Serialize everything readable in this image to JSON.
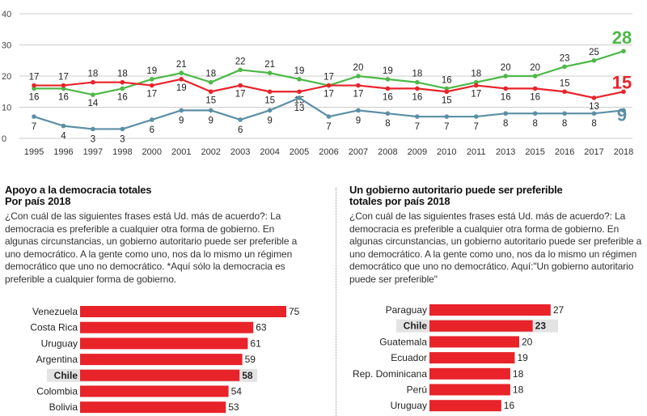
{
  "colors": {
    "green": "#4db848",
    "red": "#e8232a",
    "blue": "#5b8fa5",
    "bar": "#e8232a",
    "highlight": "#e3e3e3",
    "grid": "#cccccc"
  },
  "chart_data": [
    {
      "type": "line",
      "title": "",
      "x": [
        "1995",
        "1996",
        "1997",
        "1998",
        "2000",
        "2001",
        "2002",
        "2003",
        "2004",
        "2005",
        "2006",
        "2007",
        "2008",
        "2009",
        "2010",
        "2011",
        "2013",
        "2015",
        "2016",
        "2017",
        "2018"
      ],
      "yticks": [
        "0",
        "10",
        "20",
        "30",
        "40"
      ],
      "ylim": [
        0,
        40
      ],
      "grid": true,
      "series": [
        {
          "color": "#4db848",
          "values": [
            16,
            16,
            14,
            16,
            19,
            21,
            18,
            22,
            21,
            19,
            17,
            20,
            19,
            18,
            16,
            18,
            20,
            20,
            23,
            25,
            28
          ],
          "labels": [
            "16",
            "16",
            "14",
            "16",
            "19",
            "21",
            "18",
            "22",
            "21",
            "19",
            "17",
            "20",
            "19",
            "18",
            "16",
            "18",
            "20",
            "20",
            "23",
            "25",
            "28"
          ]
        },
        {
          "color": "#e8232a",
          "values": [
            17,
            17,
            18,
            18,
            17,
            19,
            15,
            17,
            15,
            15,
            17,
            17,
            16,
            16,
            15,
            17,
            16,
            16,
            15,
            13,
            15
          ],
          "labels": [
            "17",
            "17",
            "18",
            "18",
            "17",
            "19",
            "15",
            "17",
            "15",
            "15",
            "17",
            "17",
            "16",
            "16",
            "15",
            "17",
            "16",
            "16",
            "15",
            "13",
            "15"
          ]
        },
        {
          "color": "#5b8fa5",
          "values": [
            7,
            4,
            3,
            3,
            6,
            9,
            9,
            6,
            9,
            13,
            7,
            9,
            8,
            7,
            7,
            7,
            8,
            8,
            8,
            8,
            9
          ],
          "labels": [
            "7",
            "4",
            "3",
            "3",
            "6",
            "9",
            "9",
            "6",
            "9",
            "13",
            "7",
            "9",
            "8",
            "7",
            "7",
            "7",
            "8",
            "8",
            "8",
            "8",
            "9"
          ]
        }
      ]
    },
    {
      "type": "bar",
      "title": "Apoyo a la democracia totales\nPor país  2018",
      "categories": [
        "Venezuela",
        "Costa Rica",
        "Uruguay",
        "Argentina",
        "Chile",
        "Colombia",
        "Bolivia"
      ],
      "values": [
        75,
        63,
        61,
        59,
        58,
        54,
        53
      ],
      "highlight": "Chile"
    },
    {
      "type": "bar",
      "title": "Un gobierno autoritario puede ser preferible\ntotales por país 2018",
      "categories": [
        "Paraguay",
        "Chile",
        "Guatemala",
        "Ecuador",
        "Rep. Dominicana",
        "Perú",
        "Uruguay"
      ],
      "values": [
        27,
        23,
        20,
        19,
        18,
        18,
        16
      ],
      "highlight": "Chile"
    }
  ],
  "left_panel": {
    "title_1": "Apoyo a la democracia totales",
    "title_2": "Por país  2018",
    "body": "¿Con cuál de las siguientes frases está Ud. más de acuerdo?: La democracia es preferible a cualquier otra forma de gobierno. En algunas circunstancias, un gobierno autoritario puede ser preferible a uno democrático. A la gente como uno, nos da lo mismo un régimen democrático que uno no democrático. *Aquí sólo la democracia es preferible a cualquier forma de gobierno."
  },
  "right_panel": {
    "title_1": "Un gobierno autoritario puede ser preferible",
    "title_2": "totales por país 2018",
    "body": "¿Con cuál de las siguientes frases está Ud. más de acuerdo?: La democracia es preferible a cualquier otra forma de gobierno. En algunas circunstancias, un gobierno autoritario puede ser preferible a uno democrático. A la gente como uno, nos da lo mismo un régimen democrático que uno no democrático. Aquí:\"Un gobierno autoritario puede ser preferible\""
  }
}
